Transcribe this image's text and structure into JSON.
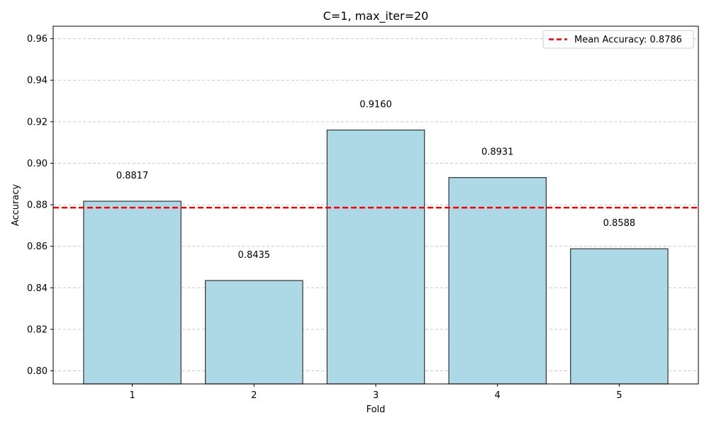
{
  "chart_data": {
    "type": "bar",
    "title": "C=1, max_iter=20",
    "xlabel": "Fold",
    "ylabel": "Accuracy",
    "categories": [
      "1",
      "2",
      "3",
      "4",
      "5"
    ],
    "values": [
      0.8817,
      0.8435,
      0.916,
      0.8931,
      0.8588
    ],
    "value_labels": [
      "0.8817",
      "0.8435",
      "0.9160",
      "0.8931",
      "0.8588"
    ],
    "ylim": [
      0.7937,
      0.966
    ],
    "yticks": [
      0.8,
      0.82,
      0.84,
      0.86,
      0.88,
      0.9,
      0.92,
      0.94,
      0.96
    ],
    "ytick_labels": [
      "0.80",
      "0.82",
      "0.84",
      "0.86",
      "0.88",
      "0.90",
      "0.92",
      "0.94",
      "0.96"
    ],
    "mean_line": {
      "value": 0.8786,
      "label": "Mean Accuracy: 0.8786",
      "color": "#ff0000",
      "style": "dashed"
    },
    "bar_color": "#add8e6",
    "bar_edge_color": "#333333",
    "grid": {
      "y": true,
      "style": "dashed",
      "color": "#c8c8c8"
    },
    "legend_position": "top-right"
  }
}
